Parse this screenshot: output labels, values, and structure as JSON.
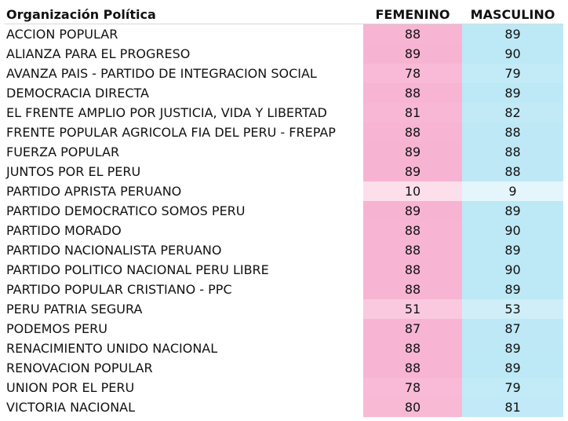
{
  "chart_data": {
    "type": "table",
    "columns": [
      "Organización Política",
      "FEMENINO",
      "MASCULINO"
    ],
    "color_scale": {
      "FEMENINO": {
        "low": "#fde0ec",
        "high": "#f7b3d2"
      },
      "MASCULINO": {
        "low": "#e4f5fb",
        "high": "#bde8f6"
      },
      "value_range": [
        9,
        90
      ]
    },
    "rows": [
      {
        "party": "ACCION POPULAR",
        "femenino": 88,
        "masculino": 89
      },
      {
        "party": "ALIANZA PARA EL PROGRESO",
        "femenino": 89,
        "masculino": 90
      },
      {
        "party": "AVANZA PAIS - PARTIDO DE INTEGRACION SOCIAL",
        "femenino": 78,
        "masculino": 79
      },
      {
        "party": "DEMOCRACIA DIRECTA",
        "femenino": 88,
        "masculino": 89
      },
      {
        "party": "EL FRENTE AMPLIO POR JUSTICIA, VIDA Y LIBERTAD",
        "femenino": 81,
        "masculino": 82
      },
      {
        "party": "FRENTE POPULAR AGRICOLA FIA DEL PERU - FREPAP",
        "femenino": 88,
        "masculino": 88
      },
      {
        "party": "FUERZA POPULAR",
        "femenino": 89,
        "masculino": 88
      },
      {
        "party": "JUNTOS POR EL PERU",
        "femenino": 89,
        "masculino": 88
      },
      {
        "party": "PARTIDO APRISTA PERUANO",
        "femenino": 10,
        "masculino": 9
      },
      {
        "party": "PARTIDO DEMOCRATICO SOMOS PERU",
        "femenino": 89,
        "masculino": 89
      },
      {
        "party": "PARTIDO MORADO",
        "femenino": 88,
        "masculino": 90
      },
      {
        "party": "PARTIDO NACIONALISTA PERUANO",
        "femenino": 88,
        "masculino": 89
      },
      {
        "party": "PARTIDO POLITICO NACIONAL PERU LIBRE",
        "femenino": 88,
        "masculino": 90
      },
      {
        "party": "PARTIDO POPULAR CRISTIANO - PPC",
        "femenino": 88,
        "masculino": 89
      },
      {
        "party": "PERU PATRIA SEGURA",
        "femenino": 51,
        "masculino": 53
      },
      {
        "party": "PODEMOS PERU",
        "femenino": 87,
        "masculino": 87
      },
      {
        "party": "RENACIMIENTO UNIDO NACIONAL",
        "femenino": 88,
        "masculino": 89
      },
      {
        "party": "RENOVACION POPULAR",
        "femenino": 88,
        "masculino": 89
      },
      {
        "party": "UNION POR EL PERU",
        "femenino": 78,
        "masculino": 79
      },
      {
        "party": "VICTORIA NACIONAL",
        "femenino": 80,
        "masculino": 81
      }
    ]
  }
}
